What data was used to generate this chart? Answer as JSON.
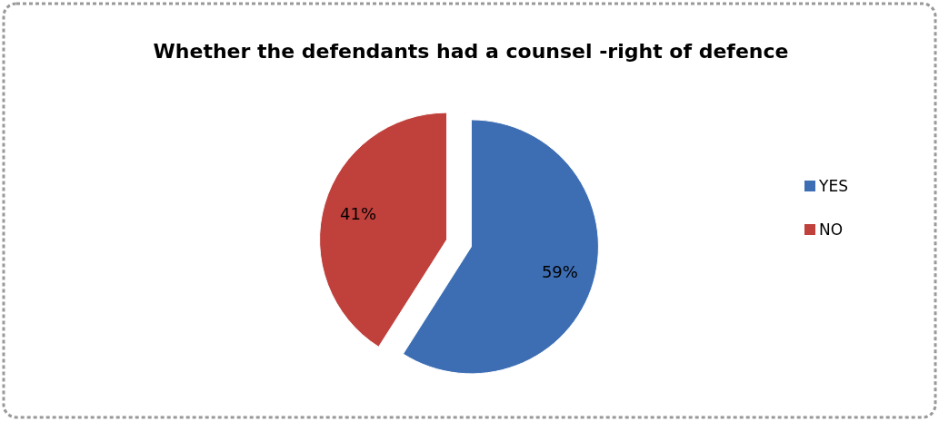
{
  "chart_data": {
    "type": "pie",
    "title": "Whether the defendants had a counsel -right of defence",
    "categories": [
      "YES",
      "NO"
    ],
    "values": [
      59,
      41
    ],
    "colors": [
      "#3d6eb4",
      "#c0403c"
    ],
    "value_labels": [
      "59%",
      "41%"
    ],
    "legend": "right"
  }
}
